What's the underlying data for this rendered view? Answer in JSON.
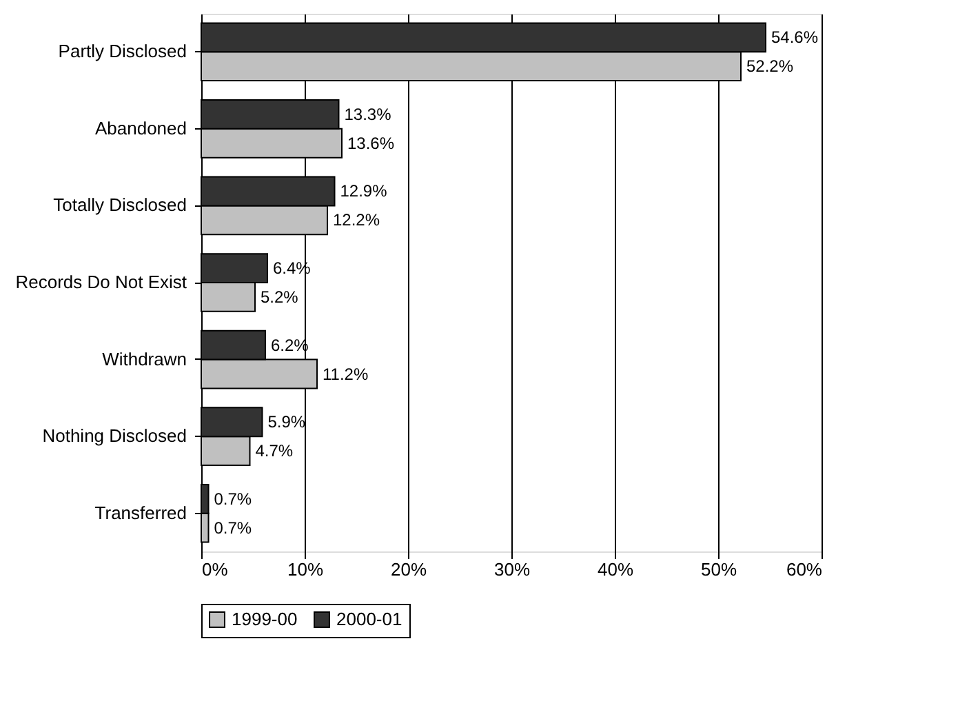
{
  "chart_data": {
    "type": "bar",
    "orientation": "horizontal",
    "categories": [
      "Partly Disclosed",
      "Abandoned",
      "Totally Disclosed",
      "Records Do Not Exist",
      "Withdrawn",
      "Nothing Disclosed",
      "Transferred"
    ],
    "series": [
      {
        "name": "1999-00",
        "color": "#c0c0c0",
        "values": [
          52.2,
          13.6,
          12.2,
          5.2,
          11.2,
          4.7,
          0.7
        ],
        "value_labels": [
          "52.2%",
          "13.6%",
          "12.2%",
          "5.2%",
          "11.2%",
          "4.7%",
          "0.7%"
        ]
      },
      {
        "name": "2000-01",
        "color": "#333333",
        "values": [
          54.6,
          13.3,
          12.9,
          6.4,
          6.2,
          5.9,
          0.7
        ],
        "value_labels": [
          "54.6%",
          "13.3%",
          "12.9%",
          "6.4%",
          "6.2%",
          "5.9%",
          "0.7%"
        ]
      }
    ],
    "xlim": [
      0,
      60
    ],
    "xticks": [
      {
        "value": 0,
        "label": "0%"
      },
      {
        "value": 10,
        "label": "10%"
      },
      {
        "value": 20,
        "label": "20%"
      },
      {
        "value": 30,
        "label": "30%"
      },
      {
        "value": 40,
        "label": "40%"
      },
      {
        "value": 50,
        "label": "50%"
      },
      {
        "value": 60,
        "label": "60%"
      }
    ],
    "grid": "x",
    "legend": "bottom"
  }
}
